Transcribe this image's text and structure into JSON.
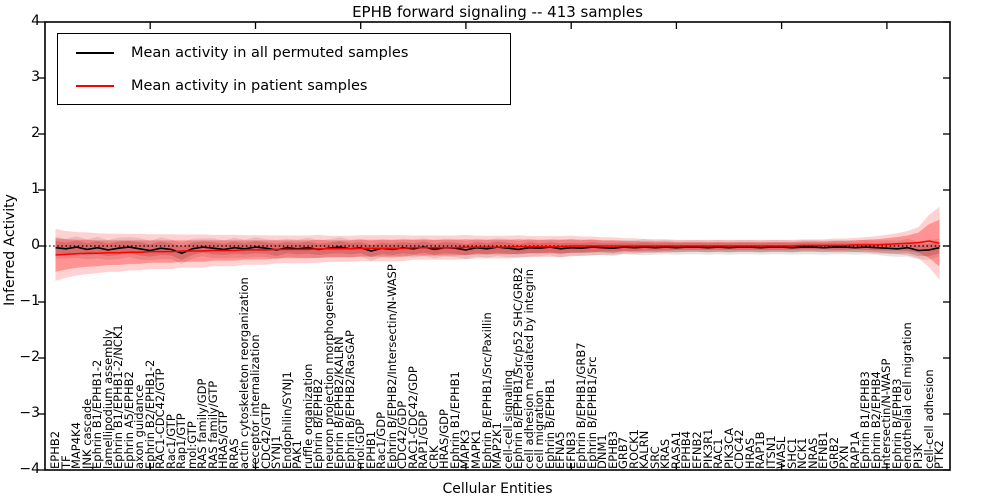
{
  "title": "EPHB forward signaling -- 413 samples",
  "ylabel": "Inferred Activity",
  "xlabel": "Cellular Entities",
  "yticks": [
    "4",
    "3",
    "2",
    "1",
    "0",
    "−1",
    "−2",
    "−3",
    "−4"
  ],
  "legend": [
    {
      "label": "Mean activity in all permuted samples",
      "color": "#000000"
    },
    {
      "label": "Mean activity in patient samples",
      "color": "#ff0000"
    }
  ],
  "chart_data": {
    "type": "line",
    "title": "EPHB forward signaling -- 413 samples",
    "xlabel": "Cellular Entities",
    "ylabel": "Inferred Activity",
    "ylim": [
      -4,
      4
    ],
    "grid": false,
    "legend_position": "upper left",
    "zero_line": {
      "style": "dotted",
      "color": "#000000",
      "y": 0
    },
    "categories": [
      "EPHB2",
      "TF",
      "MAP4K4",
      "JNK cascade",
      "Ephrin B1/EPHB1-2",
      "lamellipodium assembly",
      "Ephrin B1/EPHB1-2/NCK1",
      "Ephrin A5/EPHB2",
      "axon guidance",
      "Ephrin B2/EPHB1-2",
      "RAC1-CDC42/GTP",
      "Rac1/GTP",
      "Rap1/GTP",
      "mol:GTP",
      "RAS family/GDP",
      "RAS family/GTP",
      "HRAS/GTP",
      "RRAS",
      "actin cytoskeleton reorganization",
      "receptor internalization",
      "CDC42/GTP",
      "SYNJ1",
      "Endophilin/SYNJ1",
      "PAK1",
      "ruffle organization",
      "Ephrin B/EPHB2",
      "neuron projection morphogenesis",
      "Ephrin B/EPHB2/KALRN",
      "Ephrin B/EPHB2/RasGAP",
      "mol:GDP",
      "EPHB1",
      "Rac1/GDP",
      "Ephrin B/EPHB2/Intersectin/N-WASP",
      "CDC42/GDP",
      "RAC1-CDC42/GDP",
      "RAP1/GDP",
      "CRK",
      "HRAS/GDP",
      "Ephrin B1/EPHB1",
      "MAPK3",
      "MAPK1",
      "Ephrin B/EPHB1/Src/Paxillin",
      "MAP2K1",
      "cell-cell signaling",
      "Ephrin B/EPHB1/Src/p52 SHC/GRB2",
      "cell adhesion mediated by integrin",
      "cell migration",
      "Ephrin B/EPHB1",
      "EFNA5",
      "EFNB3",
      "Ephrin B/EPHB1/GRB7",
      "Ephrin B/EPHB1/Src",
      "DNM1",
      "EPHB3",
      "GRB7",
      "ROCK1",
      "KALRN",
      "SRC",
      "KRAS",
      "RASA1",
      "EPHB4",
      "EFNB2",
      "PIK3R1",
      "RAC1",
      "PIK3CA",
      "CDC42",
      "HRAS",
      "RAP1B",
      "ITSN1",
      "WASL",
      "SHC1",
      "NCK1",
      "NRAS",
      "EFNB1",
      "GRB2",
      "PXN",
      "RAP1A",
      "Ephrin B1/EPHB3",
      "Ephrin B2/EPHB4",
      "Intersectin/N-WASP",
      "Ephrin B/EPHB3",
      "endothelial cell migration",
      "PI3K",
      "cell-cell adhesion",
      "PTK2"
    ],
    "series": [
      {
        "name": "Mean activity in all permuted samples",
        "color": "#000000",
        "values": [
          -0.03,
          -0.05,
          -0.02,
          -0.06,
          -0.03,
          -0.07,
          -0.04,
          -0.02,
          -0.05,
          -0.08,
          -0.04,
          -0.06,
          -0.13,
          -0.05,
          -0.02,
          -0.04,
          -0.06,
          -0.03,
          -0.05,
          -0.02,
          -0.04,
          -0.07,
          -0.03,
          -0.05,
          -0.03,
          -0.06,
          -0.04,
          -0.02,
          -0.05,
          -0.03,
          -0.09,
          -0.04,
          -0.06,
          -0.03,
          -0.05,
          -0.02,
          -0.06,
          -0.03,
          -0.04,
          -0.07,
          -0.03,
          -0.05,
          -0.02,
          -0.04,
          -0.06,
          -0.03,
          -0.04,
          -0.02,
          -0.05,
          -0.03,
          -0.04,
          -0.02,
          -0.03,
          -0.04,
          -0.02,
          -0.03,
          -0.02,
          -0.03,
          -0.02,
          -0.03,
          -0.02,
          -0.02,
          -0.03,
          -0.02,
          -0.03,
          -0.02,
          -0.02,
          -0.03,
          -0.02,
          -0.02,
          -0.03,
          -0.02,
          -0.02,
          -0.03,
          -0.02,
          -0.02,
          -0.03,
          -0.02,
          -0.03,
          -0.04,
          -0.05,
          -0.03,
          -0.08,
          -0.07,
          -0.03
        ],
        "band_half_width": [
          0.12,
          0.11,
          0.12,
          0.11,
          0.12,
          0.11,
          0.12,
          0.11,
          0.12,
          0.11,
          0.12,
          0.11,
          0.12,
          0.11,
          0.1,
          0.11,
          0.1,
          0.11,
          0.1,
          0.11,
          0.1,
          0.11,
          0.1,
          0.1,
          0.11,
          0.1,
          0.1,
          0.11,
          0.1,
          0.1,
          0.11,
          0.1,
          0.1,
          0.1,
          0.1,
          0.1,
          0.1,
          0.1,
          0.1,
          0.1,
          0.1,
          0.1,
          0.1,
          0.1,
          0.09,
          0.1,
          0.09,
          0.09,
          0.1,
          0.09,
          0.09,
          0.09,
          0.08,
          0.09,
          0.08,
          0.08,
          0.09,
          0.08,
          0.08,
          0.08,
          0.08,
          0.08,
          0.08,
          0.08,
          0.08,
          0.08,
          0.08,
          0.08,
          0.08,
          0.08,
          0.08,
          0.08,
          0.08,
          0.08,
          0.08,
          0.08,
          0.08,
          0.08,
          0.08,
          0.09,
          0.09,
          0.1,
          0.1,
          0.11,
          0.1
        ]
      },
      {
        "name": "Mean activity in patient samples",
        "color": "#ff0000",
        "values": [
          -0.16,
          -0.15,
          -0.14,
          -0.13,
          -0.13,
          -0.12,
          -0.12,
          -0.11,
          -0.11,
          -0.1,
          -0.1,
          -0.1,
          -0.09,
          -0.09,
          -0.09,
          -0.08,
          -0.08,
          -0.08,
          -0.07,
          -0.07,
          -0.07,
          -0.06,
          -0.06,
          -0.06,
          -0.06,
          -0.05,
          -0.05,
          -0.05,
          -0.05,
          -0.04,
          -0.04,
          -0.04,
          -0.04,
          -0.04,
          -0.03,
          -0.03,
          -0.03,
          -0.03,
          -0.03,
          -0.02,
          -0.02,
          -0.02,
          -0.02,
          -0.02,
          -0.01,
          -0.01,
          -0.01,
          -0.01,
          -0.01,
          0.0,
          0.0,
          0.0,
          0.0,
          0.0,
          0.0,
          0.0,
          0.0,
          0.0,
          0.0,
          0.0,
          0.0,
          0.0,
          0.0,
          0.0,
          0.0,
          0.0,
          0.0,
          0.0,
          0.0,
          0.0,
          0.0,
          0.01,
          0.01,
          0.01,
          0.01,
          0.01,
          0.02,
          0.02,
          0.02,
          0.03,
          0.04,
          0.05,
          0.06,
          0.09,
          0.05
        ],
        "band_half_width": [
          0.3,
          0.27,
          0.25,
          0.24,
          0.23,
          0.22,
          0.22,
          0.21,
          0.21,
          0.2,
          0.2,
          0.2,
          0.19,
          0.19,
          0.19,
          0.18,
          0.18,
          0.18,
          0.17,
          0.17,
          0.17,
          0.16,
          0.16,
          0.16,
          0.16,
          0.16,
          0.15,
          0.15,
          0.15,
          0.15,
          0.15,
          0.15,
          0.15,
          0.15,
          0.14,
          0.14,
          0.14,
          0.14,
          0.14,
          0.14,
          0.13,
          0.13,
          0.13,
          0.13,
          0.13,
          0.12,
          0.12,
          0.12,
          0.12,
          0.12,
          0.11,
          0.11,
          0.1,
          0.1,
          0.09,
          0.09,
          0.08,
          0.08,
          0.08,
          0.07,
          0.07,
          0.07,
          0.07,
          0.07,
          0.07,
          0.07,
          0.07,
          0.07,
          0.07,
          0.07,
          0.07,
          0.07,
          0.07,
          0.07,
          0.08,
          0.08,
          0.08,
          0.09,
          0.1,
          0.11,
          0.12,
          0.14,
          0.18,
          0.3,
          0.42
        ]
      }
    ],
    "x_axis_ticks_every": 10
  }
}
